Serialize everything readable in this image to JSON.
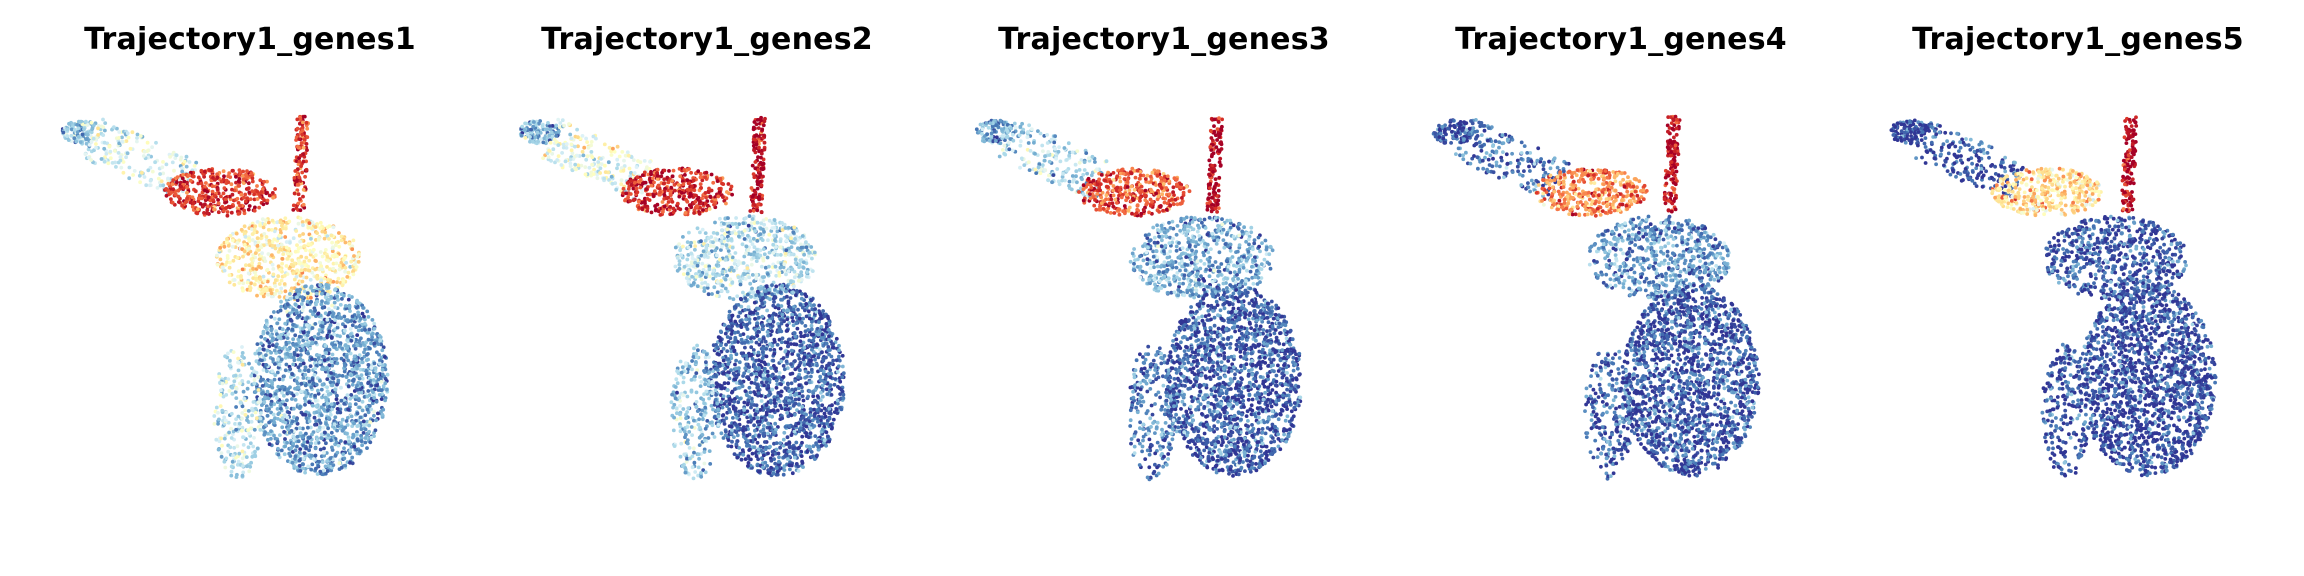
{
  "chart_data": [
    {
      "type": "scatter",
      "title": "Trajectory1_genes1",
      "xlabel": "",
      "ylabel": "",
      "axes_visible": false,
      "grid": false,
      "legend": "none",
      "colormap": "RdYlBu_r",
      "color_scale": [
        0,
        1
      ],
      "regions": [
        {
          "region": "upper-left arm tip",
          "score": 0.28
        },
        {
          "region": "upper-left arm",
          "score": 0.38
        },
        {
          "region": "upper junction",
          "score": 0.9
        },
        {
          "region": "top spike",
          "score": 0.88
        },
        {
          "region": "mid body",
          "score": 0.55
        },
        {
          "region": "lower body",
          "score": 0.18
        },
        {
          "region": "lower-left edge",
          "score": 0.33
        }
      ]
    },
    {
      "type": "scatter",
      "title": "Trajectory1_genes2",
      "xlabel": "",
      "ylabel": "",
      "axes_visible": false,
      "grid": false,
      "legend": "none",
      "colormap": "RdYlBu_r",
      "color_scale": [
        0,
        1
      ],
      "regions": [
        {
          "region": "upper-left arm tip",
          "score": 0.22
        },
        {
          "region": "upper-left arm",
          "score": 0.42
        },
        {
          "region": "upper junction",
          "score": 0.92
        },
        {
          "region": "top spike",
          "score": 0.98
        },
        {
          "region": "mid body",
          "score": 0.32
        },
        {
          "region": "lower body",
          "score": 0.07
        },
        {
          "region": "lower-left edge",
          "score": 0.25
        }
      ]
    },
    {
      "type": "scatter",
      "title": "Trajectory1_genes3",
      "xlabel": "",
      "ylabel": "",
      "axes_visible": false,
      "grid": false,
      "legend": "none",
      "colormap": "RdYlBu_r",
      "color_scale": [
        0,
        1
      ],
      "regions": [
        {
          "region": "upper-left arm tip",
          "score": 0.18
        },
        {
          "region": "upper-left arm",
          "score": 0.3
        },
        {
          "region": "upper junction",
          "score": 0.85
        },
        {
          "region": "top spike",
          "score": 0.98
        },
        {
          "region": "mid body",
          "score": 0.2
        },
        {
          "region": "lower body",
          "score": 0.06
        },
        {
          "region": "lower-left edge",
          "score": 0.12
        }
      ]
    },
    {
      "type": "scatter",
      "title": "Trajectory1_genes4",
      "xlabel": "",
      "ylabel": "",
      "axes_visible": false,
      "grid": false,
      "legend": "none",
      "colormap": "RdYlBu_r",
      "color_scale": [
        0,
        1
      ],
      "regions": [
        {
          "region": "upper-left arm tip",
          "score": 0.04
        },
        {
          "region": "upper-left arm",
          "score": 0.1
        },
        {
          "region": "upper junction",
          "score": 0.75
        },
        {
          "region": "top spike",
          "score": 0.98
        },
        {
          "region": "mid body",
          "score": 0.16
        },
        {
          "region": "lower body",
          "score": 0.05
        },
        {
          "region": "lower-left edge",
          "score": 0.06
        }
      ]
    },
    {
      "type": "scatter",
      "title": "Trajectory1_genes5",
      "xlabel": "",
      "ylabel": "",
      "axes_visible": false,
      "grid": false,
      "legend": "none",
      "colormap": "RdYlBu_r",
      "color_scale": [
        0,
        1
      ],
      "regions": [
        {
          "region": "upper-left arm tip",
          "score": 0.04
        },
        {
          "region": "upper-left arm",
          "score": 0.05
        },
        {
          "region": "upper junction",
          "score": 0.6
        },
        {
          "region": "top spike",
          "score": 0.98
        },
        {
          "region": "mid body",
          "score": 0.06
        },
        {
          "region": "lower body",
          "score": 0.03
        },
        {
          "region": "lower-left edge",
          "score": 0.04
        }
      ]
    }
  ]
}
